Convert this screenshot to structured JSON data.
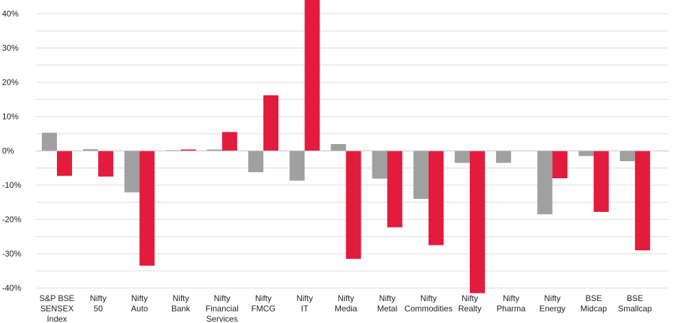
{
  "chart_data": {
    "type": "bar",
    "title": "",
    "xlabel": "",
    "ylabel": "",
    "ylim": [
      -40,
      40
    ],
    "yticks": [
      40,
      30,
      20,
      10,
      0,
      -10,
      -20,
      -30,
      -40
    ],
    "ytick_labels": [
      "40%",
      "30%",
      "20%",
      "10%",
      "0%",
      "-10%",
      "-20%",
      "-30%",
      "-40%"
    ],
    "grid": true,
    "legend": "none",
    "categories": [
      [
        "S&P BSE",
        "SENSEX",
        "Index"
      ],
      [
        "Nifty",
        "50"
      ],
      [
        "Nifty",
        "Auto"
      ],
      [
        "Nifty",
        "Bank"
      ],
      [
        "Nifty",
        "Financial",
        "Services"
      ],
      [
        "Nifty",
        "FMCG"
      ],
      [
        "Nifty",
        "IT"
      ],
      [
        "Nifty",
        "Media"
      ],
      [
        "Nifty",
        "Metal"
      ],
      [
        "Nifty",
        "Commodities"
      ],
      [
        "Nifty",
        "Realty"
      ],
      [
        "Nifty",
        "Pharma"
      ],
      [
        "Nifty",
        "Energy"
      ],
      [
        "BSE",
        "Midcap"
      ],
      [
        "BSE",
        "Smallcap"
      ]
    ],
    "series": [
      {
        "color": "#a0a0a0",
        "values": [
          5.3,
          0.5,
          -12.1,
          0.2,
          0.4,
          -6.2,
          -8.7,
          2.0,
          -8.1,
          -14.0,
          -3.5,
          -3.5,
          -18.5,
          -1.5,
          -3.0
        ]
      },
      {
        "color": "#e31b3d",
        "values": [
          -7.3,
          -7.5,
          -33.5,
          0.4,
          5.5,
          16.2,
          45.0,
          -31.5,
          -22.3,
          -27.5,
          -41.5,
          0.0,
          -8.0,
          -17.8,
          -29.0
        ]
      }
    ]
  }
}
